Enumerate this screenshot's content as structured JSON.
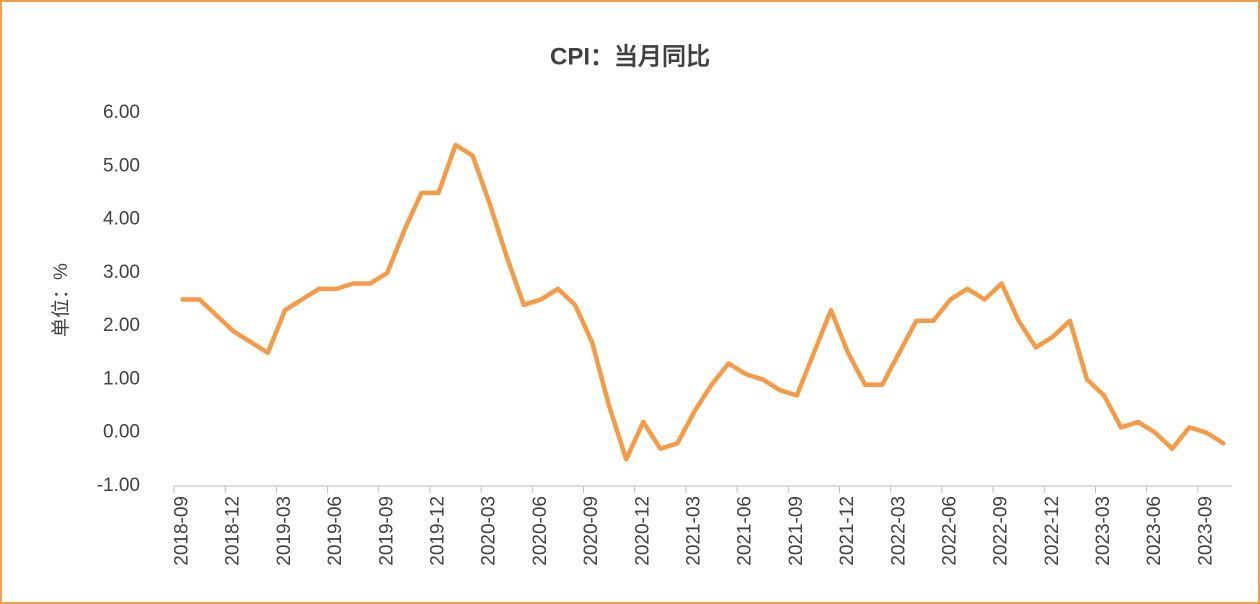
{
  "chart_data": {
    "type": "line",
    "title": "CPI：当月同比",
    "y_label": "单位：%",
    "categories": [
      "2018-09",
      null,
      null,
      "2018-12",
      null,
      null,
      "2019-03",
      null,
      null,
      "2019-06",
      null,
      null,
      "2019-09",
      null,
      null,
      "2019-12",
      null,
      null,
      "2020-03",
      null,
      null,
      "2020-06",
      null,
      null,
      "2020-09",
      null,
      null,
      "2020-12",
      null,
      null,
      "2021-03",
      null,
      null,
      "2021-06",
      null,
      null,
      "2021-09",
      null,
      null,
      "2021-12",
      null,
      null,
      "2022-03",
      null,
      null,
      "2022-06",
      null,
      null,
      "2022-09",
      null,
      null,
      "2022-12",
      null,
      null,
      "2023-03",
      null,
      null,
      "2023-06",
      null,
      null,
      "2023-09",
      null
    ],
    "series": [
      {
        "color": "#f59a45",
        "values": [
          2.5,
          2.5,
          2.2,
          1.9,
          1.7,
          1.5,
          2.3,
          2.5,
          2.7,
          2.7,
          2.8,
          2.8,
          3.0,
          3.8,
          4.5,
          4.5,
          5.4,
          5.2,
          4.3,
          3.3,
          2.4,
          2.5,
          2.7,
          2.4,
          1.7,
          0.5,
          -0.5,
          0.2,
          -0.3,
          -0.2,
          0.4,
          0.9,
          1.3,
          1.1,
          1.0,
          0.8,
          0.7,
          1.5,
          2.3,
          1.5,
          0.9,
          0.9,
          1.5,
          2.1,
          2.1,
          2.5,
          2.7,
          2.5,
          2.8,
          2.1,
          1.6,
          1.8,
          2.1,
          1.0,
          0.7,
          0.1,
          0.2,
          0.0,
          -0.3,
          0.1,
          0.0,
          -0.2
        ]
      }
    ],
    "ylim": [
      -1,
      6
    ],
    "yticks": [
      {
        "value": -1,
        "label": "-1.00"
      },
      {
        "value": 0,
        "label": "0.00"
      },
      {
        "value": 1,
        "label": "1.00"
      },
      {
        "value": 2,
        "label": "2.00"
      },
      {
        "value": 3,
        "label": "3.00"
      },
      {
        "value": 4,
        "label": "4.00"
      },
      {
        "value": 5,
        "label": "5.00"
      },
      {
        "value": 6,
        "label": "6.00"
      }
    ],
    "grid": false
  }
}
